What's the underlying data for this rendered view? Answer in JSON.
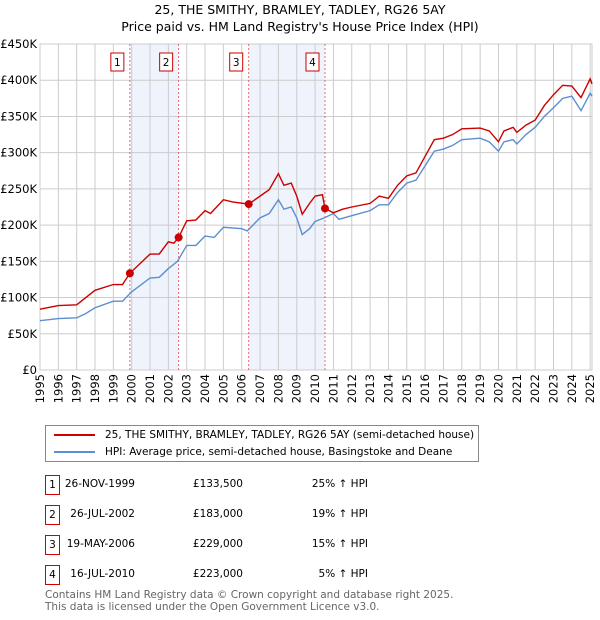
{
  "title": "25, THE SMITHY, BRAMLEY, TADLEY, RG26 5AY",
  "subtitle": "Price paid vs. HM Land Registry's House Price Index (HPI)",
  "chart_data": {
    "type": "line",
    "title": "25, THE SMITHY, BRAMLEY, TADLEY, RG26 5AY — Price paid vs. HM Land Registry's House Price Index (HPI)",
    "xlim": [
      1995,
      2025.1
    ],
    "ylim": [
      0,
      450000
    ],
    "yticks": [
      0,
      50000,
      100000,
      150000,
      200000,
      250000,
      300000,
      350000,
      400000,
      450000
    ],
    "ytick_labels": [
      "£0",
      "£50K",
      "£100K",
      "£150K",
      "£200K",
      "£250K",
      "£300K",
      "£350K",
      "£400K",
      "£450K"
    ],
    "xticks": [
      "1995",
      "1996",
      "1997",
      "1998",
      "1999",
      "2000",
      "2001",
      "2002",
      "2003",
      "2004",
      "2005",
      "2006",
      "2007",
      "2008",
      "2009",
      "2010",
      "2011",
      "2012",
      "2013",
      "2014",
      "2015",
      "2016",
      "2017",
      "2018",
      "2019",
      "2020",
      "2021",
      "2022",
      "2023",
      "2024",
      "2025"
    ],
    "grid": true,
    "colors": {
      "property": "#cc0000",
      "hpi": "#5b8fd0",
      "shade": "#eef3fc"
    },
    "shaded_ranges": [
      [
        1999.9,
        2002.56
      ],
      [
        2006.38,
        2010.54
      ]
    ],
    "series": [
      {
        "name": "25, THE SMITHY, BRAMLEY, TADLEY, RG26 5AY (semi-detached house)",
        "key": "property",
        "x": [
          1995,
          1996,
          1997,
          1998,
          1999,
          1999.5,
          1999.9,
          2001,
          2001.5,
          2002,
          2002.3,
          2002.56,
          2003,
          2003.5,
          2004,
          2004.3,
          2005,
          2005.5,
          2006.38,
          2007,
          2007.5,
          2008,
          2008.3,
          2008.7,
          2009,
          2009.3,
          2009.7,
          2010,
          2010.4,
          2010.54,
          2011,
          2011.5,
          2012,
          2013,
          2013.5,
          2014,
          2014.5,
          2015,
          2015.5,
          2016,
          2016.5,
          2017,
          2017.5,
          2018,
          2019,
          2019.5,
          2020,
          2020.3,
          2020.8,
          2021,
          2021.5,
          2022,
          2022.5,
          2023,
          2023.5,
          2024,
          2024.5,
          2025,
          2025.1
        ],
        "y": [
          84000,
          89000,
          90000,
          110000,
          118000,
          118000,
          133500,
          160000,
          160000,
          177000,
          175000,
          183000,
          206000,
          207000,
          220000,
          216000,
          235000,
          232000,
          229000,
          240000,
          249000,
          271000,
          255000,
          258000,
          240000,
          215000,
          230000,
          240000,
          242000,
          223000,
          217000,
          222000,
          225000,
          230000,
          240000,
          237000,
          255000,
          268000,
          272000,
          295000,
          318000,
          320000,
          325000,
          333000,
          334000,
          330000,
          315000,
          330000,
          335000,
          328000,
          338000,
          345000,
          365000,
          380000,
          393000,
          392000,
          376000,
          402000,
          395000
        ]
      },
      {
        "name": "HPI: Average price, semi-detached house, Basingstoke and Deane",
        "key": "hpi",
        "x": [
          1995,
          1996,
          1997,
          1997.5,
          1998,
          1999,
          1999.5,
          2000,
          2001,
          2001.5,
          2002,
          2002.5,
          2003,
          2003.5,
          2004,
          2004.5,
          2005,
          2006,
          2006.3,
          2007,
          2007.5,
          2008,
          2008.3,
          2008.7,
          2009,
          2009.3,
          2009.7,
          2010,
          2010.5,
          2011,
          2011.3,
          2012,
          2013,
          2013.5,
          2014,
          2014.5,
          2015,
          2015.5,
          2016,
          2016.5,
          2017,
          2017.5,
          2018,
          2019,
          2019.5,
          2020,
          2020.3,
          2020.8,
          2021,
          2021.5,
          2022,
          2022.5,
          2023,
          2023.5,
          2024,
          2024.5,
          2025,
          2025.1
        ],
        "y": [
          68000,
          71000,
          72000,
          78000,
          86000,
          95000,
          95000,
          108000,
          127000,
          128000,
          140000,
          150000,
          172000,
          172000,
          185000,
          183000,
          197000,
          195000,
          192000,
          210000,
          216000,
          235000,
          222000,
          225000,
          210000,
          187000,
          195000,
          205000,
          210000,
          216000,
          208000,
          213000,
          220000,
          228000,
          228000,
          245000,
          258000,
          262000,
          282000,
          302000,
          305000,
          310000,
          318000,
          320000,
          315000,
          302000,
          315000,
          318000,
          312000,
          325000,
          335000,
          350000,
          362000,
          375000,
          378000,
          358000,
          382000,
          378000
        ]
      }
    ],
    "sales": [
      {
        "label": "1",
        "x": 1999.9,
        "date": "26-NOV-1999",
        "price": 133500,
        "price_text": "£133,500",
        "hpi_text": "25% ↑ HPI"
      },
      {
        "label": "2",
        "x": 2002.56,
        "date": "26-JUL-2002",
        "price": 183000,
        "price_text": "£183,000",
        "hpi_text": "19% ↑ HPI"
      },
      {
        "label": "3",
        "x": 2006.38,
        "date": "19-MAY-2006",
        "price": 229000,
        "price_text": "£229,000",
        "hpi_text": "15% ↑ HPI"
      },
      {
        "label": "4",
        "x": 2010.54,
        "date": "16-JUL-2010",
        "price": 223000,
        "price_text": "£223,000",
        "hpi_text": "5% ↑ HPI"
      }
    ],
    "legend_position": "below"
  },
  "footer": [
    "Contains HM Land Registry data © Crown copyright and database right 2025.",
    "This data is licensed under the Open Government Licence v3.0."
  ]
}
